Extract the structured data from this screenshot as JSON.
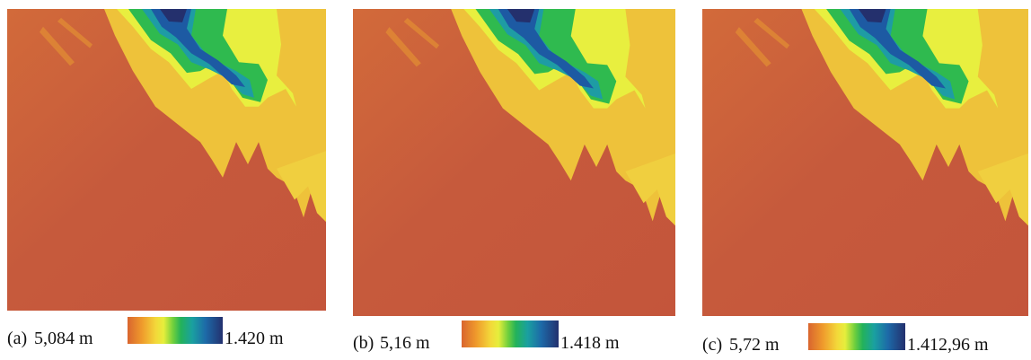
{
  "panels": [
    {
      "caption": "(a)",
      "min_label": "5,084 m",
      "max_label": "1.420 m"
    },
    {
      "caption": "(b)",
      "min_label": "5,16 m",
      "max_label": "1.418 m"
    },
    {
      "caption": "(c)",
      "min_label": "5,72 m",
      "max_label": "1.412,96 m"
    }
  ]
}
